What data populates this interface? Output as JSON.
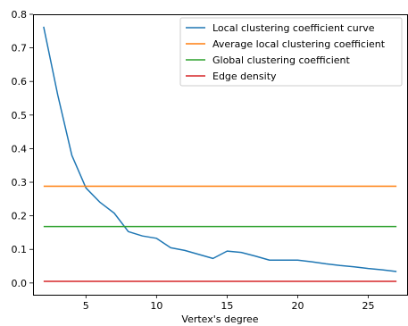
{
  "chart_data": {
    "type": "line",
    "title": "",
    "xlabel": "Vertex's degree",
    "ylabel": "",
    "xlim": [
      1.25,
      27.75
    ],
    "ylim": [
      -0.035,
      0.8
    ],
    "xticks": [
      5,
      10,
      15,
      20,
      25
    ],
    "yticks": [
      0.0,
      0.1,
      0.2,
      0.3,
      0.4,
      0.5,
      0.6,
      0.7,
      0.8
    ],
    "grid": false,
    "legend_position": "top-right",
    "series": [
      {
        "name": "Local clustering coefficient curve",
        "color": "#1f77b4",
        "x": [
          2,
          3,
          4,
          5,
          6,
          7,
          8,
          9,
          10,
          11,
          12,
          13,
          14,
          15,
          16,
          17,
          18,
          19,
          20,
          21,
          22,
          23,
          24,
          25,
          26,
          27
        ],
        "y": [
          0.763,
          0.56,
          0.38,
          0.283,
          0.24,
          0.208,
          0.153,
          0.14,
          0.133,
          0.105,
          0.097,
          0.085,
          0.073,
          0.095,
          0.091,
          0.08,
          0.068,
          0.068,
          0.068,
          0.063,
          0.057,
          0.052,
          0.048,
          0.043,
          0.039,
          0.034
        ]
      },
      {
        "name": "Average local clustering coefficient",
        "color": "#ff7f0e",
        "x": [
          2,
          27
        ],
        "y": [
          0.288,
          0.288
        ]
      },
      {
        "name": "Global clustering coefficient",
        "color": "#2ca02c",
        "x": [
          2,
          27
        ],
        "y": [
          0.168,
          0.168
        ]
      },
      {
        "name": "Edge density",
        "color": "#d62728",
        "x": [
          2,
          27
        ],
        "y": [
          0.005,
          0.005
        ]
      }
    ]
  }
}
